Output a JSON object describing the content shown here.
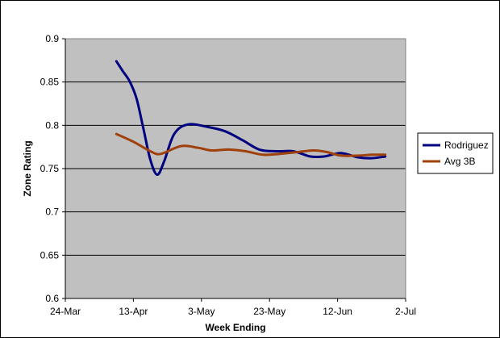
{
  "chart_data": {
    "type": "line",
    "title": "",
    "xlabel": "Week Ending",
    "ylabel": "Zone Rating",
    "ylim": [
      0.6,
      0.9
    ],
    "xlim": [
      "2007-03-24",
      "2007-07-02"
    ],
    "x_tick_labels": [
      "24-Mar",
      "13-Apr",
      "3-May",
      "23-May",
      "12-Jun",
      "2-Jul"
    ],
    "y_tick_labels": [
      "0.6",
      "0.65",
      "0.7",
      "0.75",
      "0.8",
      "0.85",
      "0.9"
    ],
    "grid": "horizontal",
    "plot_background": "#C0C0C0",
    "legend_position": "right",
    "series": [
      {
        "name": "Rodriguez",
        "color": "#000080",
        "points": [
          {
            "x": "2007-04-08",
            "y": 0.874
          },
          {
            "x": "2007-04-10",
            "y": 0.862
          },
          {
            "x": "2007-04-12",
            "y": 0.85
          },
          {
            "x": "2007-04-14",
            "y": 0.83
          },
          {
            "x": "2007-04-16",
            "y": 0.795
          },
          {
            "x": "2007-04-18",
            "y": 0.76
          },
          {
            "x": "2007-04-20",
            "y": 0.743
          },
          {
            "x": "2007-04-22",
            "y": 0.758
          },
          {
            "x": "2007-04-25",
            "y": 0.79
          },
          {
            "x": "2007-04-29",
            "y": 0.801
          },
          {
            "x": "2007-05-05",
            "y": 0.798
          },
          {
            "x": "2007-05-10",
            "y": 0.793
          },
          {
            "x": "2007-05-15",
            "y": 0.783
          },
          {
            "x": "2007-05-20",
            "y": 0.772
          },
          {
            "x": "2007-05-25",
            "y": 0.77
          },
          {
            "x": "2007-05-30",
            "y": 0.77
          },
          {
            "x": "2007-06-04",
            "y": 0.764
          },
          {
            "x": "2007-06-08",
            "y": 0.764
          },
          {
            "x": "2007-06-13",
            "y": 0.768
          },
          {
            "x": "2007-06-18",
            "y": 0.763
          },
          {
            "x": "2007-06-22",
            "y": 0.762
          },
          {
            "x": "2007-06-26",
            "y": 0.764
          }
        ]
      },
      {
        "name": "Avg 3B",
        "color": "#A0400A",
        "points": [
          {
            "x": "2007-04-08",
            "y": 0.79
          },
          {
            "x": "2007-04-13",
            "y": 0.781
          },
          {
            "x": "2007-04-18",
            "y": 0.77
          },
          {
            "x": "2007-04-21",
            "y": 0.767
          },
          {
            "x": "2007-04-27",
            "y": 0.776
          },
          {
            "x": "2007-05-02",
            "y": 0.774
          },
          {
            "x": "2007-05-06",
            "y": 0.771
          },
          {
            "x": "2007-05-11",
            "y": 0.772
          },
          {
            "x": "2007-05-16",
            "y": 0.77
          },
          {
            "x": "2007-05-21",
            "y": 0.766
          },
          {
            "x": "2007-05-26",
            "y": 0.767
          },
          {
            "x": "2007-05-31",
            "y": 0.769
          },
          {
            "x": "2007-06-05",
            "y": 0.771
          },
          {
            "x": "2007-06-09",
            "y": 0.769
          },
          {
            "x": "2007-06-13",
            "y": 0.765
          },
          {
            "x": "2007-06-18",
            "y": 0.765
          },
          {
            "x": "2007-06-22",
            "y": 0.766
          },
          {
            "x": "2007-06-26",
            "y": 0.766
          }
        ]
      }
    ]
  }
}
